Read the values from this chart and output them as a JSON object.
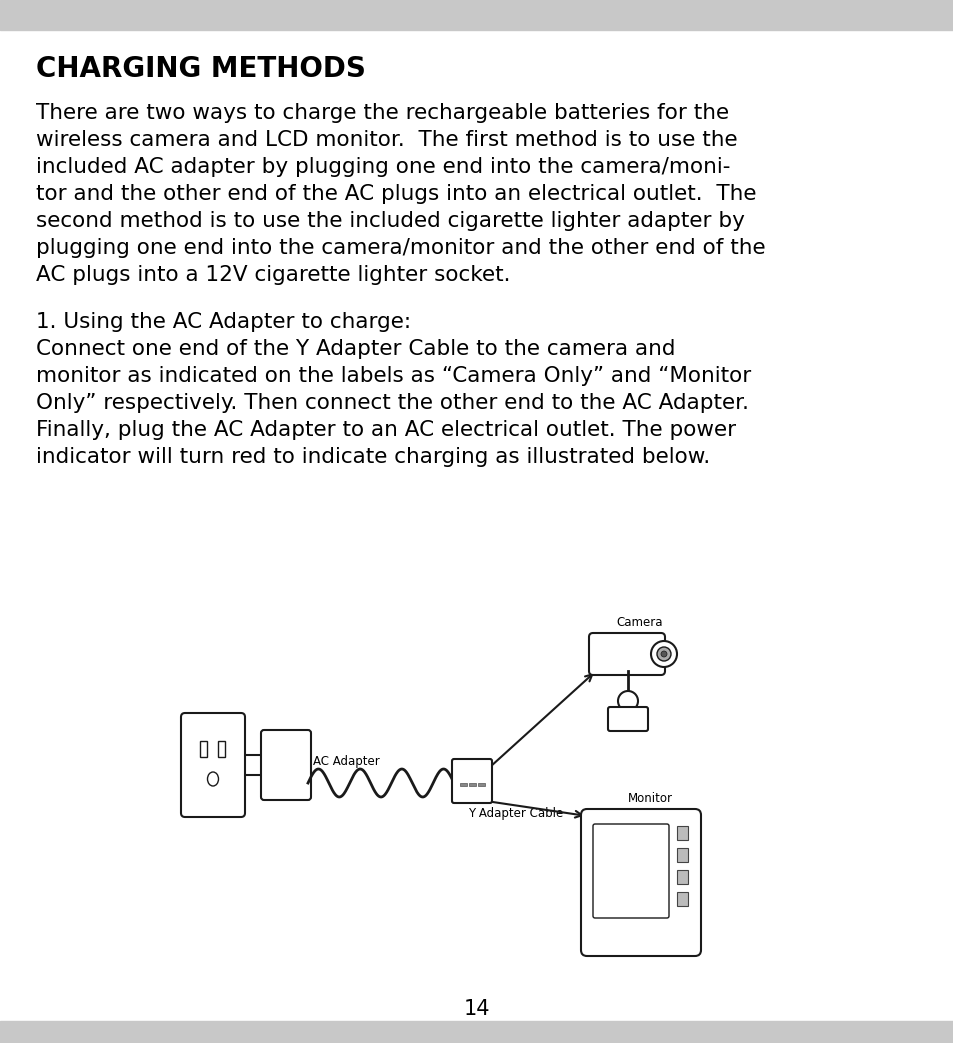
{
  "title": "CHARGING METHODS",
  "header_bar_color": "#c8c8c8",
  "background_color": "#ffffff",
  "text_color": "#000000",
  "page_number": "14",
  "para1_lines": [
    "There are two ways to charge the rechargeable batteries for the",
    "wireless camera and LCD monitor.  The first method is to use the",
    "included AC adapter by plugging one end into the camera/moni-",
    "tor and the other end of the AC plugs into an electrical outlet.  The",
    "second method is to use the included cigarette lighter adapter by",
    "plugging one end into the camera/monitor and the other end of the",
    "AC plugs into a 12V cigarette lighter socket."
  ],
  "section_title": "1. Using the AC Adapter to charge:",
  "para2_lines": [
    "Connect one end of the Y Adapter Cable to the camera and",
    "monitor as indicated on the labels as “Camera Only” and “Monitor",
    "Only” respectively. Then connect the other end to the AC Adapter.",
    "Finally, plug the AC Adapter to an AC electrical outlet. The power",
    "indicator will turn red to indicate charging as illustrated below."
  ],
  "diagram_label_camera": "Camera",
  "diagram_label_ac": "AC Adapter",
  "diagram_label_y_cable": "Y Adapter Cable",
  "diagram_label_monitor": "Monitor",
  "font_size_title": 20,
  "font_size_body": 15.5,
  "font_size_section": 15.5,
  "font_size_page": 15,
  "font_size_diagram": 8.5
}
